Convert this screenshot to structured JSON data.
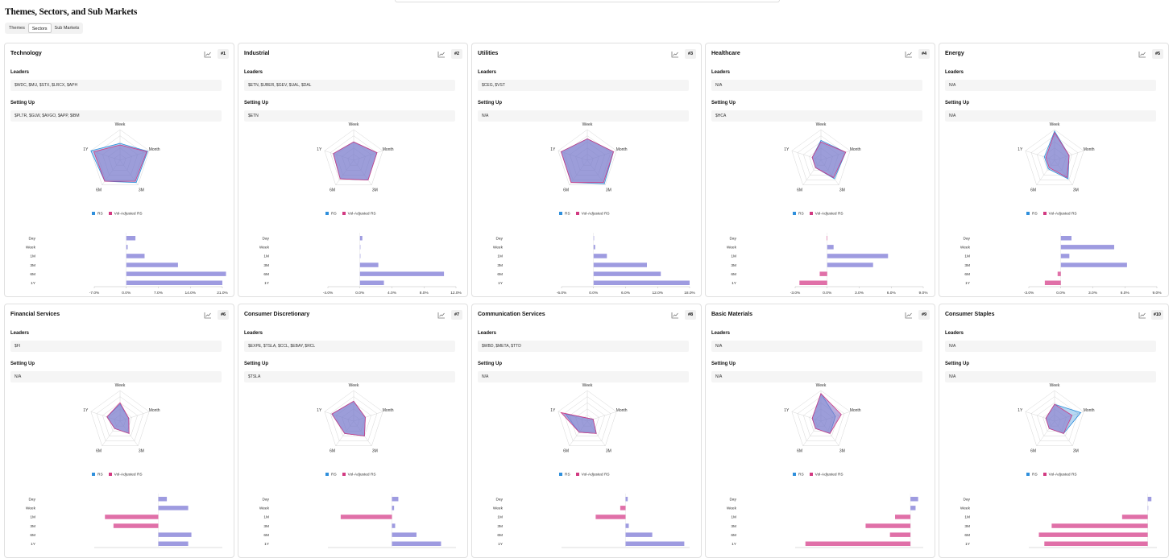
{
  "page": {
    "title": "Themes, Sectors, and Sub Markets"
  },
  "tabs": [
    {
      "label": "Themes"
    },
    {
      "label": "Sectors"
    },
    {
      "label": "Sub Markets"
    }
  ],
  "active_tab": "Sectors",
  "labels": {
    "leaders": "Leaders",
    "setting_up": "Setting Up"
  },
  "legend": {
    "rs": "RS",
    "vol": "Vol-Adjusted RS"
  },
  "colors": {
    "rs": "#2f8fdc",
    "vol": "#d23a82",
    "bar_pos": "#9e9be0",
    "bar_neg": "#e070a8",
    "radar_fill": "#8a76c8"
  },
  "radar_axes": [
    "Week",
    "Month",
    "3M",
    "6M",
    "1Y"
  ],
  "bar_categories": [
    "Day",
    "Week",
    "1M",
    "3M",
    "6M",
    "1Y"
  ],
  "cards": [
    {
      "name": "Technology",
      "rank": "#1",
      "leaders": "$WDC, $MU, $STX, $LRCX, $APH",
      "setting_up": "$PLTR, $GLW, $AVGO, $APP, $IBM",
      "radar": {
        "rs": [
          0.55,
          0.95,
          0.9,
          0.85,
          1.0
        ],
        "vol": [
          0.5,
          0.92,
          0.85,
          0.85,
          0.9
        ]
      },
      "bars": {
        "values": [
          2,
          0.3,
          4,
          11.3,
          21.8,
          21
        ],
        "ticks": [
          "-7.0%",
          "0.0%",
          "7.0%",
          "14.0%",
          "21.0%"
        ],
        "min": -7,
        "max": 21
      }
    },
    {
      "name": "Industrial",
      "rank": "#2",
      "leaders": "$ETN, $UBER, $GEV, $UAL, $DAL",
      "setting_up": "$ETN",
      "radar": {
        "rs": [
          0.6,
          0.8,
          0.8,
          0.75,
          0.7
        ],
        "vol": [
          0.6,
          0.8,
          0.8,
          0.75,
          0.7
        ]
      },
      "bars": {
        "values": [
          0.3,
          0.05,
          0.05,
          2.3,
          10.5,
          3
        ],
        "ticks": [
          "-4.0%",
          "0.0%",
          "4.0%",
          "8.0%",
          "12.0%"
        ],
        "min": -4,
        "max": 12
      }
    },
    {
      "name": "Utilities",
      "rank": "#3",
      "leaders": "$CEG, $VST",
      "setting_up": "N/A",
      "radar": {
        "rs": [
          0.7,
          0.9,
          0.95,
          0.9,
          0.9
        ],
        "vol": [
          0.7,
          0.9,
          0.9,
          0.9,
          0.9
        ]
      },
      "bars": {
        "values": [
          0.05,
          0.3,
          2.5,
          10,
          12.6,
          18
        ],
        "ticks": [
          "-6.0%",
          "0.0%",
          "6.0%",
          "12.0%",
          "18.0%"
        ],
        "min": -6,
        "max": 18
      }
    },
    {
      "name": "Healthcare",
      "rank": "#4",
      "leaders": "N/A",
      "setting_up": "$HCA",
      "radar": {
        "rs": [
          0.65,
          0.85,
          0.75,
          0.3,
          0.3
        ],
        "vol": [
          0.6,
          0.85,
          0.7,
          0.3,
          0.3
        ]
      },
      "bars": {
        "values": [
          -0.05,
          0.6,
          5.7,
          4.3,
          -0.7,
          -2.6
        ],
        "ticks": [
          "-3.0%",
          "0.0%",
          "3.0%",
          "6.0%",
          "9.0%"
        ],
        "min": -3,
        "max": 9
      }
    },
    {
      "name": "Energy",
      "rank": "#5",
      "leaders": "N/A",
      "setting_up": "N/A",
      "radar": {
        "rs": [
          0.95,
          0.5,
          0.75,
          0.35,
          0.35
        ],
        "vol": [
          0.9,
          0.5,
          0.7,
          0.3,
          0.3
        ]
      },
      "bars": {
        "values": [
          1,
          5,
          0.8,
          6.2,
          -0.3,
          -1.5
        ],
        "ticks": [
          "-3.0%",
          "0.0%",
          "3.0%",
          "6.0%",
          "9.0%"
        ],
        "min": -3,
        "max": 9
      }
    },
    {
      "name": "Financial Services",
      "rank": "#6",
      "leaders": "$FI",
      "setting_up": "N/A",
      "radar": {
        "rs": [
          0.55,
          0.3,
          0.5,
          0.3,
          0.45
        ],
        "vol": [
          0.6,
          0.3,
          0.5,
          0.3,
          0.45
        ]
      },
      "bars": {
        "values": [
          0.8,
          2.8,
          -5,
          -4.2,
          3.1,
          2.8
        ],
        "ticks": [],
        "min": -6,
        "max": 6
      }
    },
    {
      "name": "Consumer Discretionary",
      "rank": "#7",
      "leaders": "$EXPE, $TSLA, $CCL, $EBAY, $RCL",
      "setting_up": "$TSLA",
      "radar": {
        "rs": [
          0.65,
          0.4,
          0.6,
          0.5,
          0.75
        ],
        "vol": [
          0.65,
          0.4,
          0.6,
          0.5,
          0.75
        ]
      },
      "bars": {
        "values": [
          0.6,
          0.2,
          -4.8,
          0.3,
          2.3,
          4.6
        ],
        "ticks": [],
        "min": -6,
        "max": 6
      }
    },
    {
      "name": "Communication Services",
      "rank": "#8",
      "leaders": "$WBD, $META, $TTD",
      "setting_up": "N/A",
      "radar": {
        "rs": [
          0.1,
          0.2,
          0.5,
          0.45,
          0.75
        ],
        "vol": [
          0.1,
          0.2,
          0.5,
          0.45,
          0.9
        ]
      },
      "bars": {
        "values": [
          0.2,
          -0.5,
          -2.8,
          0.3,
          2.5,
          5.5
        ],
        "ticks": [],
        "min": -6,
        "max": 6
      }
    },
    {
      "name": "Basic Materials",
      "rank": "#9",
      "leaders": "N/A",
      "setting_up": "N/A",
      "radar": {
        "rs": [
          0.9,
          0.5,
          0.5,
          0.3,
          0.3
        ],
        "vol": [
          0.9,
          0.7,
          0.5,
          0.3,
          0.3
        ]
      },
      "bars": {
        "values": [
          0.6,
          0.4,
          -1.2,
          -3.5,
          -1.6,
          -8.2
        ],
        "ticks": [],
        "min": -9,
        "max": 1
      }
    },
    {
      "name": "Consumer Staples",
      "rank": "#10",
      "leaders": "N/A",
      "setting_up": "N/A",
      "radar": {
        "rs": [
          0.55,
          0.9,
          0.5,
          0.3,
          0.3
        ],
        "vol": [
          0.55,
          0.6,
          0.5,
          0.3,
          0.3
        ]
      },
      "bars": {
        "values": [
          0.4,
          0,
          -2.8,
          -10.5,
          -11.9,
          -11.3
        ],
        "ticks": [],
        "min": -13,
        "max": 1
      }
    }
  ]
}
